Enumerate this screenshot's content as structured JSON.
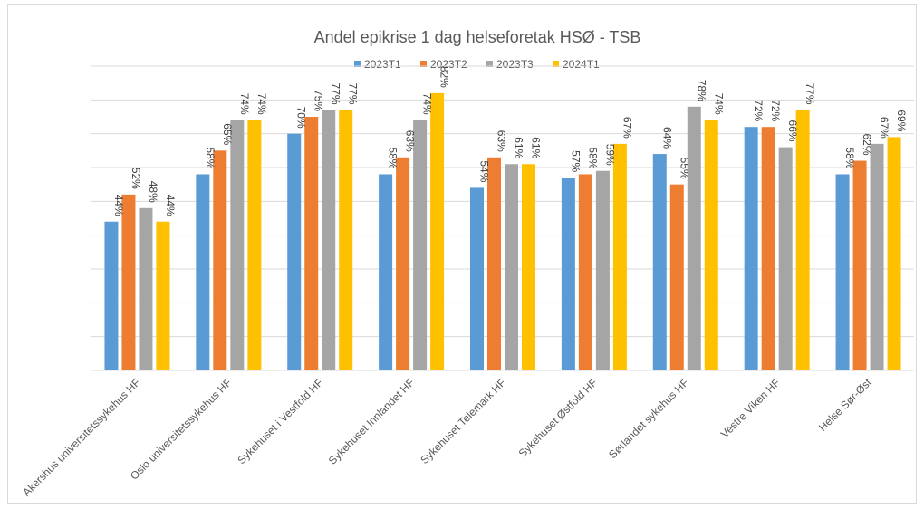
{
  "chart_data": {
    "type": "bar",
    "title": "Andel epikrise 1 dag helseforetak HSØ - TSB",
    "xlabel": "",
    "ylabel": "",
    "ylim": [
      0,
      90
    ],
    "grid": true,
    "legend_position": "top",
    "categories": [
      "Akershus universitetssykehus HF",
      "Oslo universitetssykehus HF",
      "Sykehuset i Vestfold HF",
      "Sykehuset Innlandet HF",
      "Sykehuset Telemark HF",
      "Sykehuset Østfold HF",
      "Sørlandet sykehus HF",
      "Vestre Viken HF",
      "Helse Sør-Øst"
    ],
    "series": [
      {
        "name": "2023T1",
        "color": "#5b9bd5",
        "values": [
          44,
          58,
          70,
          58,
          54,
          57,
          64,
          72,
          58
        ],
        "labels": [
          "44%",
          "58%",
          "70%",
          "58%",
          "54%",
          "57%",
          "64%",
          "72%",
          "58%"
        ]
      },
      {
        "name": "2023T2",
        "color": "#ed7d31",
        "values": [
          52,
          65,
          75,
          63,
          63,
          58,
          55,
          72,
          62
        ],
        "labels": [
          "52%",
          "65%",
          "75%",
          "63%",
          "63%",
          "58%",
          "55%",
          "72%",
          "62%"
        ]
      },
      {
        "name": "2023T3",
        "color": "#a5a5a5",
        "values": [
          48,
          74,
          77,
          74,
          61,
          59,
          78,
          66,
          67
        ],
        "labels": [
          "48%",
          "74%",
          "77%",
          "74%",
          "61%",
          "59%",
          "78%",
          "66%",
          "67%"
        ]
      },
      {
        "name": "2024T1",
        "color": "#ffc000",
        "values": [
          44,
          74,
          77,
          82,
          61,
          67,
          74,
          77,
          69
        ],
        "labels": [
          "44%",
          "74%",
          "77%",
          "82%",
          "61%",
          "67%",
          "74%",
          "77%",
          "69%"
        ]
      }
    ]
  }
}
